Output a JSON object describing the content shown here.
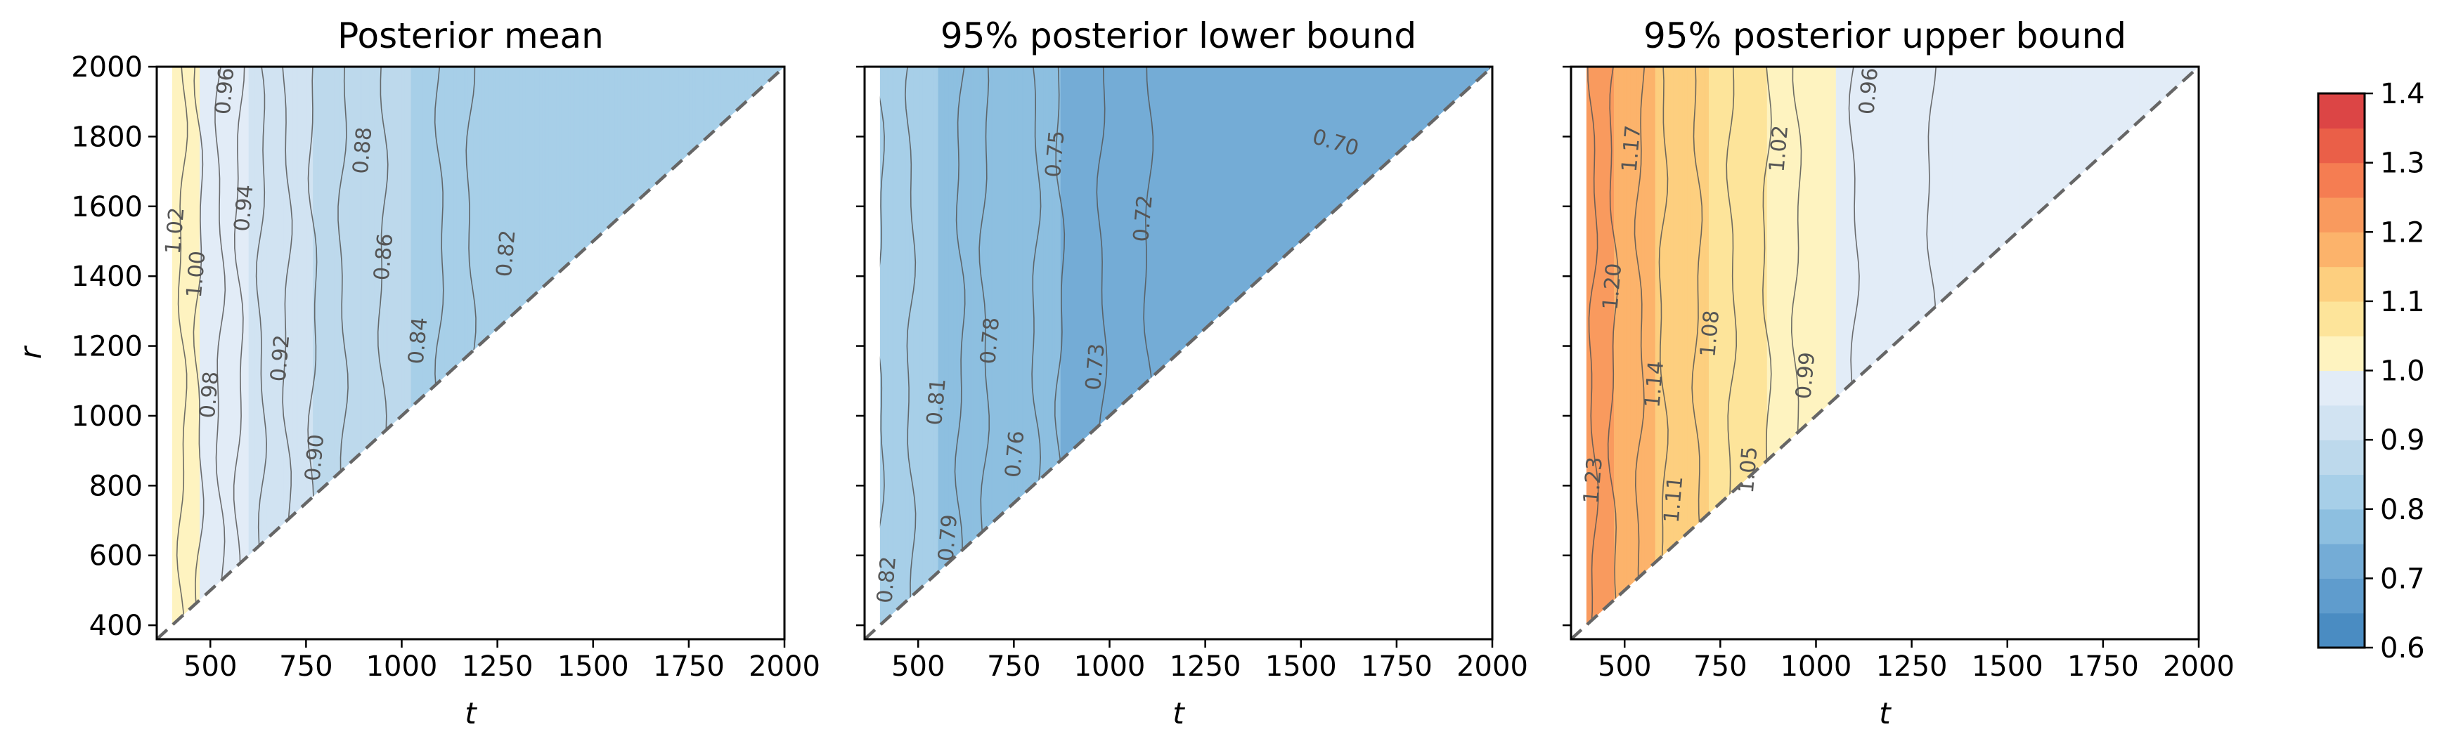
{
  "chart_data": {
    "type": "heatmap",
    "shared": {
      "xlabel": "t",
      "ylabel": "r",
      "xlim": [
        360,
        2000
      ],
      "ylim": [
        360,
        2000
      ],
      "xticks": [
        500,
        750,
        1000,
        1250,
        1500,
        1750,
        2000
      ],
      "yticks": [
        400,
        600,
        800,
        1000,
        1200,
        1400,
        1600,
        1800,
        2000
      ],
      "diagonal": "r = t (dashed)",
      "region": "r >= t"
    },
    "colorbar": {
      "min": 0.6,
      "max": 1.4,
      "levels": [
        0.6,
        0.65,
        0.7,
        0.75,
        0.8,
        0.85,
        0.9,
        0.95,
        1.0,
        1.05,
        1.1,
        1.15,
        1.2,
        1.25,
        1.3,
        1.35,
        1.4
      ],
      "colors": [
        "#4a8cc2",
        "#5f9ccd",
        "#74acd6",
        "#8dbfe0",
        "#a7cfe8",
        "#bdd9ec",
        "#d1e3f2",
        "#e2ecf7",
        "#fef3c0",
        "#fde49a",
        "#fdcf7f",
        "#fcb36b",
        "#f99a5e",
        "#f57d52",
        "#ea5f48",
        "#dc4545"
      ],
      "ticks": [
        "0.6",
        "0.7",
        "0.8",
        "0.9",
        "1.0",
        "1.1",
        "1.2",
        "1.3",
        "1.4"
      ]
    },
    "panels": [
      {
        "title": "Posterior mean",
        "show_yticklabels": true,
        "profile": [
          [
            400,
            1.04
          ],
          [
            440,
            1.01
          ],
          [
            500,
            0.99
          ],
          [
            600,
            0.95
          ],
          [
            700,
            0.92
          ],
          [
            820,
            0.885
          ],
          [
            950,
            0.86
          ],
          [
            1100,
            0.84
          ],
          [
            1200,
            0.815
          ],
          [
            2000,
            0.81
          ]
        ],
        "contour_levels": [
          1.02,
          1.0,
          0.98,
          0.96,
          0.94,
          0.92,
          0.9,
          0.88,
          0.86,
          0.84,
          0.82
        ],
        "contour_labels": [
          {
            "text": "1.02",
            "t": 410,
            "r": 1530
          },
          {
            "text": "1.00",
            "t": 465,
            "r": 1405
          },
          {
            "text": "0.98",
            "t": 500,
            "r": 1060
          },
          {
            "text": "0.96",
            "t": 540,
            "r": 1930
          },
          {
            "text": "0.94",
            "t": 590,
            "r": 1595
          },
          {
            "text": "0.92",
            "t": 685,
            "r": 1165
          },
          {
            "text": "0.90",
            "t": 775,
            "r": 880
          },
          {
            "text": "0.88",
            "t": 900,
            "r": 1760
          },
          {
            "text": "0.86",
            "t": 955,
            "r": 1455
          },
          {
            "text": "0.84",
            "t": 1045,
            "r": 1215
          },
          {
            "text": "0.82",
            "t": 1275,
            "r": 1465
          }
        ]
      },
      {
        "title": "95% posterior lower bound",
        "show_yticklabels": false,
        "profile": [
          [
            400,
            0.82
          ],
          [
            520,
            0.805
          ],
          [
            640,
            0.785
          ],
          [
            740,
            0.77
          ],
          [
            860,
            0.752
          ],
          [
            980,
            0.73
          ],
          [
            1100,
            0.72
          ],
          [
            1250,
            0.705
          ],
          [
            2000,
            0.7
          ]
        ],
        "contour_levels": [
          0.82,
          0.81,
          0.79,
          0.78,
          0.76,
          0.75,
          0.73,
          0.72,
          0.7
        ],
        "contour_labels": [
          {
            "text": "0.82",
            "t": 420,
            "r": 530
          },
          {
            "text": "0.81",
            "t": 550,
            "r": 1040
          },
          {
            "text": "0.79",
            "t": 580,
            "r": 650
          },
          {
            "text": "0.78",
            "t": 690,
            "r": 1215
          },
          {
            "text": "0.76",
            "t": 755,
            "r": 890
          },
          {
            "text": "0.75",
            "t": 860,
            "r": 1750
          },
          {
            "text": "0.73",
            "t": 965,
            "r": 1140
          },
          {
            "text": "0.72",
            "t": 1090,
            "r": 1565
          },
          {
            "text": "0.70",
            "t": 1590,
            "r": 1780
          }
        ]
      },
      {
        "title": "95% posterior upper bound",
        "show_yticklabels": false,
        "profile": [
          [
            400,
            1.24
          ],
          [
            470,
            1.2
          ],
          [
            540,
            1.17
          ],
          [
            600,
            1.14
          ],
          [
            690,
            1.11
          ],
          [
            780,
            1.08
          ],
          [
            870,
            1.05
          ],
          [
            950,
            1.02
          ],
          [
            1100,
            0.99
          ],
          [
            1300,
            0.96
          ],
          [
            2000,
            0.955
          ]
        ],
        "contour_levels": [
          1.23,
          1.2,
          1.17,
          1.14,
          1.11,
          1.08,
          1.05,
          1.02,
          0.99,
          0.96
        ],
        "contour_labels": [
          {
            "text": "1.23",
            "t": 420,
            "r": 815
          },
          {
            "text": "1.20",
            "t": 470,
            "r": 1370
          },
          {
            "text": "1.17",
            "t": 520,
            "r": 1765
          },
          {
            "text": "1.14",
            "t": 580,
            "r": 1090
          },
          {
            "text": "1.11",
            "t": 630,
            "r": 760
          },
          {
            "text": "1.08",
            "t": 725,
            "r": 1235
          },
          {
            "text": "1.05",
            "t": 825,
            "r": 845
          },
          {
            "text": "1.02",
            "t": 905,
            "r": 1765
          },
          {
            "text": "0.99",
            "t": 975,
            "r": 1115
          },
          {
            "text": "0.96",
            "t": 1140,
            "r": 1930
          }
        ]
      }
    ]
  }
}
